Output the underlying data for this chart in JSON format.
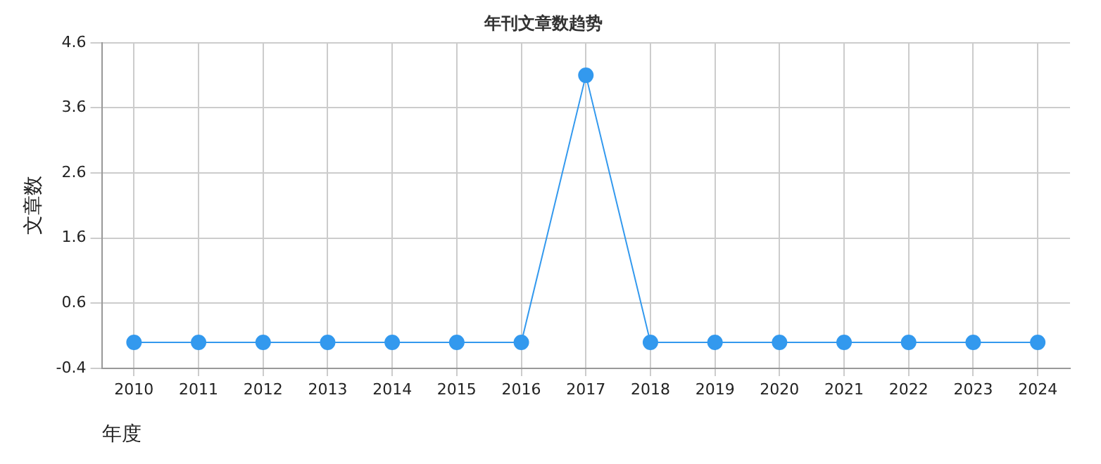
{
  "chart_data": {
    "type": "line",
    "title": "年刊文章数趋势",
    "xlabel": "年度",
    "ylabel": "文章数",
    "categories": [
      "2010",
      "2011",
      "2012",
      "2013",
      "2014",
      "2015",
      "2016",
      "2017",
      "2018",
      "2019",
      "2020",
      "2021",
      "2022",
      "2023",
      "2024"
    ],
    "series": [
      {
        "color": "#3399ee",
        "values": [
          0,
          0,
          0,
          0,
          0,
          0,
          0,
          4.1,
          0,
          0,
          0,
          0,
          0,
          0,
          0
        ]
      }
    ],
    "ylim": [
      -0.4,
      4.6
    ],
    "yticks": [
      -0.4,
      0.6,
      1.6,
      2.6,
      3.6,
      4.6
    ],
    "grid": true,
    "marker": "circle",
    "line_style": "solid",
    "legend": false
  }
}
